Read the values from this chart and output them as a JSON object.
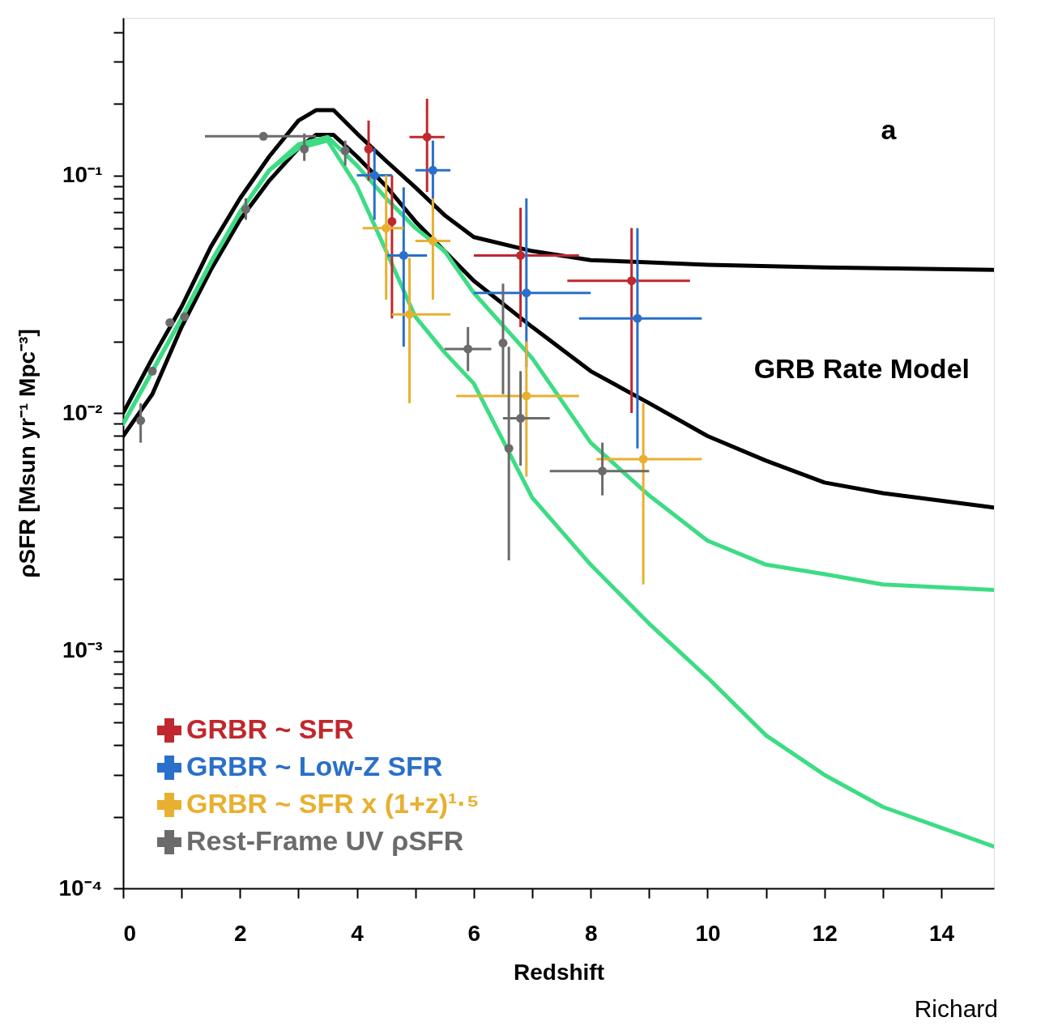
{
  "chart_data": {
    "type": "scatter",
    "xlabel": "Redshift",
    "ylabel": "ρSFR [Msun yr⁻¹ Mpc⁻³]",
    "xlim": [
      0,
      14.9
    ],
    "ylim": [
      0.0001,
      0.46
    ],
    "log": "y",
    "grid": false,
    "legend": "bottom left",
    "xticks": [
      0,
      {
        "value": 1,
        "label": null
      },
      2,
      {
        "value": 3,
        "label": null
      },
      4,
      {
        "value": 5,
        "label": null
      },
      6,
      {
        "value": 7,
        "label": null
      },
      8,
      {
        "value": 9,
        "label": null
      },
      10,
      {
        "value": 11,
        "label": null
      },
      12,
      {
        "value": 13,
        "label": null
      },
      14
    ],
    "yticks": [
      {
        "value": 0.0001,
        "label": "10⁻⁴"
      },
      {
        "value": 0.0002,
        "label": null
      },
      {
        "value": 0.0003,
        "label": null
      },
      {
        "value": 0.0004,
        "label": null
      },
      {
        "value": 0.0005,
        "label": null
      },
      {
        "value": 0.0006,
        "label": null
      },
      {
        "value": 0.0007,
        "label": null
      },
      {
        "value": 0.0008,
        "label": null
      },
      {
        "value": 0.0009,
        "label": null
      },
      {
        "value": 0.001,
        "label": "10⁻³"
      },
      {
        "value": 0.002,
        "label": null
      },
      {
        "value": 0.003,
        "label": null
      },
      {
        "value": 0.004,
        "label": null
      },
      {
        "value": 0.005,
        "label": null
      },
      {
        "value": 0.006,
        "label": null
      },
      {
        "value": 0.007,
        "label": null
      },
      {
        "value": 0.008,
        "label": null
      },
      {
        "value": 0.009,
        "label": null
      },
      {
        "value": 0.01,
        "label": "10⁻²"
      },
      {
        "value": 0.02,
        "label": null
      },
      {
        "value": 0.03,
        "label": null
      },
      {
        "value": 0.04,
        "label": null
      },
      {
        "value": 0.05,
        "label": null
      },
      {
        "value": 0.06,
        "label": null
      },
      {
        "value": 0.07,
        "label": null
      },
      {
        "value": 0.08,
        "label": null
      },
      {
        "value": 0.09,
        "label": null
      },
      {
        "value": 0.1,
        "label": "10⁻¹"
      },
      {
        "value": 0.2,
        "label": null
      },
      {
        "value": 0.3,
        "label": null
      },
      {
        "value": 0.4,
        "label": null
      }
    ],
    "annotations": [
      "a",
      "GRB Rate Model",
      "Richard"
    ],
    "series": [
      {
        "type": "line",
        "color": "#000000",
        "x": [
          0,
          0.5,
          1,
          1.5,
          2,
          2.5,
          3,
          3.3,
          3.6,
          4,
          4.5,
          5,
          5.5,
          6,
          7,
          8,
          9,
          10,
          12,
          14.9
        ],
        "values": [
          0.01,
          0.017,
          0.028,
          0.05,
          0.08,
          0.12,
          0.17,
          0.188,
          0.188,
          0.15,
          0.115,
          0.089,
          0.068,
          0.055,
          0.048,
          0.044,
          0.043,
          0.042,
          0.041,
          0.04
        ]
      },
      {
        "type": "line",
        "color": "#000000",
        "x": [
          0,
          0.5,
          1,
          1.5,
          2,
          2.5,
          3,
          3.3,
          3.6,
          4,
          4.5,
          5,
          6,
          7,
          8,
          9,
          10,
          11,
          12,
          13,
          14.9
        ],
        "values": [
          0.008,
          0.012,
          0.023,
          0.04,
          0.065,
          0.095,
          0.13,
          0.148,
          0.148,
          0.12,
          0.09,
          0.064,
          0.036,
          0.023,
          0.015,
          0.011,
          0.008,
          0.0063,
          0.0051,
          0.0046,
          0.004
        ]
      },
      {
        "type": "line",
        "color": "#3ddc84",
        "x": [
          0,
          0.5,
          1,
          1.5,
          2,
          2.5,
          3,
          3.5,
          4,
          4.5,
          5,
          5.5,
          6,
          7,
          8,
          9,
          10,
          11,
          12,
          13,
          14.9
        ],
        "values": [
          0.009,
          0.015,
          0.025,
          0.043,
          0.07,
          0.105,
          0.135,
          0.145,
          0.11,
          0.08,
          0.06,
          0.048,
          0.032,
          0.017,
          0.0075,
          0.0045,
          0.0029,
          0.0023,
          0.0021,
          0.0019,
          0.0018
        ]
      },
      {
        "type": "line",
        "color": "#3ddc84",
        "x": [
          0,
          0.5,
          1,
          1.5,
          2,
          2.5,
          3,
          3.5,
          4,
          4.5,
          5,
          5.5,
          6,
          7,
          8,
          9,
          10,
          11,
          12,
          13,
          14.9
        ],
        "values": [
          0.009,
          0.015,
          0.025,
          0.043,
          0.07,
          0.105,
          0.13,
          0.14,
          0.09,
          0.048,
          0.0254,
          0.018,
          0.0133,
          0.0044,
          0.0023,
          0.0013,
          0.00077,
          0.00044,
          0.0003,
          0.00022,
          0.00015
        ]
      },
      {
        "name": "GRBR ~ SFR",
        "color": "#c0282d",
        "marker": "circle",
        "x": [
          4.2,
          5.2,
          4.6,
          6.8,
          8.7
        ],
        "values": [
          0.129,
          0.145,
          0.064,
          0.046,
          0.036
        ],
        "errors": [
          [
            0.095,
            0.17
          ],
          [
            0.085,
            0.21
          ],
          [
            0.025,
            0.1
          ],
          [
            0.023,
            0.073
          ],
          [
            0.01,
            0.06
          ]
        ],
        "xerrors": [
          null,
          [
            4.9,
            5.5
          ],
          null,
          [
            6.0,
            7.8
          ],
          [
            7.6,
            9.7
          ]
        ]
      },
      {
        "name": "GRBR ~ Low-Z SFR",
        "color": "#2a6fc9",
        "marker": "circle",
        "x": [
          4.3,
          5.3,
          4.8,
          6.9,
          8.8
        ],
        "values": [
          0.1,
          0.105,
          0.046,
          0.032,
          0.025
        ],
        "errors": [
          [
            0.065,
            0.13
          ],
          [
            0.07,
            0.14
          ],
          [
            0.019,
            0.089
          ],
          [
            0.0156,
            0.08
          ],
          [
            0.0071,
            0.06
          ]
        ],
        "xerrors": [
          [
            4.0,
            4.6
          ],
          [
            5.0,
            5.6
          ],
          [
            4.5,
            5.2
          ],
          [
            6.0,
            8.0
          ],
          [
            7.8,
            9.9
          ]
        ]
      },
      {
        "name": "GRBR ~ SFR x (1+z)¹·⁵",
        "color": "#e8b030",
        "marker": "circle",
        "x": [
          4.5,
          5.3,
          4.9,
          6.9,
          8.9
        ],
        "values": [
          0.06,
          0.053,
          0.026,
          0.0118,
          0.0064
        ],
        "errors": [
          [
            0.03,
            0.1
          ],
          [
            0.03,
            0.08
          ],
          [
            0.011,
            0.045
          ],
          [
            0.0054,
            0.02
          ],
          [
            0.0019,
            0.011
          ]
        ],
        "xerrors": [
          [
            4.1,
            4.8
          ],
          [
            5.0,
            5.6
          ],
          [
            4.6,
            5.6
          ],
          [
            5.7,
            7.8
          ],
          [
            8.1,
            9.9
          ]
        ]
      },
      {
        "name": "Rest-Frame UV ρSFR",
        "color": "#6b6b6b",
        "marker": "circle",
        "x": [
          0.3,
          0.5,
          0.8,
          1.05,
          2.1,
          2.4,
          3.1,
          3.8,
          5.9,
          6.5,
          6.6,
          6.8,
          8.2
        ],
        "values": [
          0.0093,
          0.015,
          0.024,
          0.0254,
          0.072,
          0.146,
          0.129,
          0.127,
          0.0186,
          0.0197,
          0.0071,
          0.0095,
          0.0057
        ],
        "errors": [
          [
            0.0075,
            0.011
          ],
          null,
          null,
          null,
          [
            0.065,
            0.08
          ],
          null,
          [
            0.115,
            0.15
          ],
          [
            0.11,
            0.14
          ],
          [
            0.015,
            0.023
          ],
          [
            0.012,
            0.035
          ],
          [
            0.0024,
            0.019
          ],
          [
            0.006,
            0.015
          ],
          [
            0.0045,
            0.0075
          ]
        ],
        "xerrors": [
          null,
          null,
          null,
          null,
          null,
          [
            1.4,
            3.3
          ],
          null,
          null,
          [
            5.5,
            6.3
          ],
          null,
          null,
          [
            6.5,
            7.3
          ],
          [
            7.3,
            9.0
          ]
        ]
      }
    ]
  }
}
